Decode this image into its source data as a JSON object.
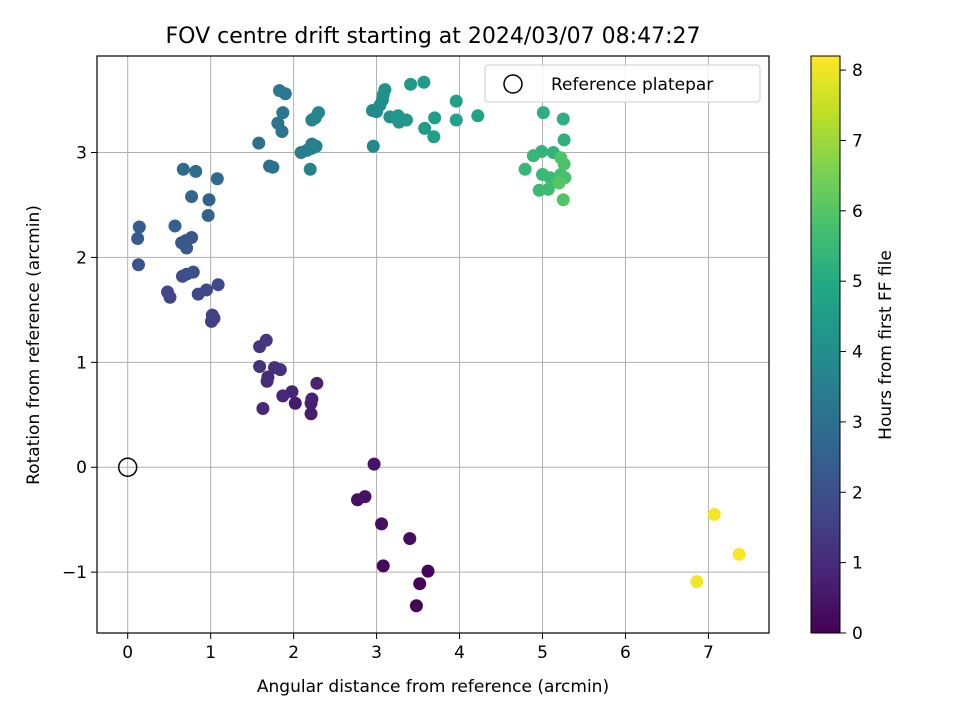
{
  "chart_data": {
    "type": "scatter",
    "title": "FOV centre drift starting at 2024/03/07 08:47:27",
    "xlabel": "Angular distance from reference (arcmin)",
    "ylabel": "Rotation from reference (arcmin)",
    "xlim": [
      -0.37,
      7.73
    ],
    "ylim": [
      -1.58,
      3.92
    ],
    "xticks": [
      "0",
      "1",
      "2",
      "3",
      "4",
      "5",
      "6",
      "7"
    ],
    "yticks": [
      "−1",
      "0",
      "1",
      "2",
      "3"
    ],
    "grid": true,
    "legend": {
      "position": "top-right",
      "entries": [
        "Reference platepar"
      ]
    },
    "reference": {
      "x": 0,
      "y": 0
    },
    "colorbar": {
      "label": "Hours from first FF file",
      "range": [
        0,
        8.2
      ],
      "ticks": [
        "0",
        "1",
        "2",
        "3",
        "4",
        "5",
        "6",
        "7",
        "8"
      ],
      "colormap": "viridis"
    },
    "points": [
      {
        "x": 3.48,
        "y": -1.32,
        "h": 0.05
      },
      {
        "x": 3.52,
        "y": -1.11,
        "h": 0.1
      },
      {
        "x": 3.62,
        "y": -0.99,
        "h": 0.15
      },
      {
        "x": 3.08,
        "y": -0.94,
        "h": 0.2
      },
      {
        "x": 3.4,
        "y": -0.68,
        "h": 0.25
      },
      {
        "x": 3.06,
        "y": -0.54,
        "h": 0.3
      },
      {
        "x": 2.77,
        "y": -0.31,
        "h": 0.35
      },
      {
        "x": 2.86,
        "y": -0.28,
        "h": 0.4
      },
      {
        "x": 2.97,
        "y": 0.03,
        "h": 0.45
      },
      {
        "x": 2.02,
        "y": 0.61,
        "h": 0.6
      },
      {
        "x": 2.21,
        "y": 0.51,
        "h": 0.65
      },
      {
        "x": 2.21,
        "y": 0.61,
        "h": 0.7
      },
      {
        "x": 2.22,
        "y": 0.65,
        "h": 0.75
      },
      {
        "x": 2.28,
        "y": 0.8,
        "h": 0.8
      },
      {
        "x": 1.98,
        "y": 0.72,
        "h": 0.85
      },
      {
        "x": 1.87,
        "y": 0.68,
        "h": 0.9
      },
      {
        "x": 1.63,
        "y": 0.56,
        "h": 0.95
      },
      {
        "x": 1.68,
        "y": 0.82,
        "h": 1.0
      },
      {
        "x": 1.69,
        "y": 0.86,
        "h": 1.05
      },
      {
        "x": 1.77,
        "y": 0.95,
        "h": 1.1
      },
      {
        "x": 1.84,
        "y": 0.93,
        "h": 1.15
      },
      {
        "x": 1.59,
        "y": 0.96,
        "h": 1.2
      },
      {
        "x": 1.59,
        "y": 1.15,
        "h": 1.25
      },
      {
        "x": 1.67,
        "y": 1.21,
        "h": 1.3
      },
      {
        "x": 1.01,
        "y": 1.39,
        "h": 1.5
      },
      {
        "x": 1.04,
        "y": 1.42,
        "h": 1.55
      },
      {
        "x": 1.02,
        "y": 1.45,
        "h": 1.6
      },
      {
        "x": 0.51,
        "y": 1.62,
        "h": 1.65
      },
      {
        "x": 0.48,
        "y": 1.67,
        "h": 1.7
      },
      {
        "x": 0.85,
        "y": 1.65,
        "h": 1.75
      },
      {
        "x": 0.95,
        "y": 1.69,
        "h": 1.8
      },
      {
        "x": 1.09,
        "y": 1.74,
        "h": 1.85
      },
      {
        "x": 0.66,
        "y": 1.82,
        "h": 1.9
      },
      {
        "x": 0.71,
        "y": 1.84,
        "h": 1.95
      },
      {
        "x": 0.79,
        "y": 1.86,
        "h": 2.0
      },
      {
        "x": 0.13,
        "y": 1.93,
        "h": 2.05
      },
      {
        "x": 0.65,
        "y": 2.14,
        "h": 2.15
      },
      {
        "x": 0.7,
        "y": 2.16,
        "h": 2.2
      },
      {
        "x": 0.77,
        "y": 2.19,
        "h": 2.25
      },
      {
        "x": 0.71,
        "y": 2.09,
        "h": 2.3
      },
      {
        "x": 0.12,
        "y": 2.18,
        "h": 2.35
      },
      {
        "x": 0.14,
        "y": 2.29,
        "h": 2.4
      },
      {
        "x": 0.57,
        "y": 2.3,
        "h": 2.45
      },
      {
        "x": 0.97,
        "y": 2.4,
        "h": 2.55
      },
      {
        "x": 0.98,
        "y": 2.55,
        "h": 2.6
      },
      {
        "x": 0.77,
        "y": 2.58,
        "h": 2.7
      },
      {
        "x": 1.08,
        "y": 2.75,
        "h": 2.75
      },
      {
        "x": 0.67,
        "y": 2.84,
        "h": 2.85
      },
      {
        "x": 0.82,
        "y": 2.82,
        "h": 2.9
      },
      {
        "x": 1.58,
        "y": 3.09,
        "h": 2.95
      },
      {
        "x": 1.71,
        "y": 2.87,
        "h": 3.0
      },
      {
        "x": 1.75,
        "y": 2.86,
        "h": 3.05
      },
      {
        "x": 1.81,
        "y": 3.28,
        "h": 3.1
      },
      {
        "x": 1.86,
        "y": 3.2,
        "h": 3.15
      },
      {
        "x": 1.87,
        "y": 3.38,
        "h": 3.2
      },
      {
        "x": 1.83,
        "y": 3.59,
        "h": 3.25
      },
      {
        "x": 1.9,
        "y": 3.56,
        "h": 3.3
      },
      {
        "x": 2.22,
        "y": 3.08,
        "h": 3.35
      },
      {
        "x": 2.09,
        "y": 3.0,
        "h": 3.4
      },
      {
        "x": 2.16,
        "y": 3.02,
        "h": 3.45
      },
      {
        "x": 2.22,
        "y": 3.04,
        "h": 3.5
      },
      {
        "x": 2.27,
        "y": 3.06,
        "h": 3.55
      },
      {
        "x": 2.2,
        "y": 2.84,
        "h": 3.6
      },
      {
        "x": 2.22,
        "y": 3.31,
        "h": 3.65
      },
      {
        "x": 2.26,
        "y": 3.33,
        "h": 3.7
      },
      {
        "x": 2.3,
        "y": 3.38,
        "h": 3.75
      },
      {
        "x": 2.96,
        "y": 3.06,
        "h": 3.8
      },
      {
        "x": 2.95,
        "y": 3.4,
        "h": 3.85
      },
      {
        "x": 3.0,
        "y": 3.39,
        "h": 3.9
      },
      {
        "x": 3.04,
        "y": 3.45,
        "h": 3.95
      },
      {
        "x": 3.07,
        "y": 3.5,
        "h": 4.0
      },
      {
        "x": 3.08,
        "y": 3.55,
        "h": 4.05
      },
      {
        "x": 3.1,
        "y": 3.6,
        "h": 4.1
      },
      {
        "x": 3.16,
        "y": 3.34,
        "h": 4.15
      },
      {
        "x": 3.23,
        "y": 3.33,
        "h": 4.2
      },
      {
        "x": 3.27,
        "y": 3.29,
        "h": 4.25
      },
      {
        "x": 3.26,
        "y": 3.35,
        "h": 4.3
      },
      {
        "x": 3.36,
        "y": 3.31,
        "h": 4.35
      },
      {
        "x": 3.41,
        "y": 3.65,
        "h": 4.4
      },
      {
        "x": 3.57,
        "y": 3.67,
        "h": 4.45
      },
      {
        "x": 3.58,
        "y": 3.23,
        "h": 4.5
      },
      {
        "x": 3.7,
        "y": 3.33,
        "h": 4.55
      },
      {
        "x": 3.69,
        "y": 3.15,
        "h": 4.6
      },
      {
        "x": 3.96,
        "y": 3.49,
        "h": 4.65
      },
      {
        "x": 3.96,
        "y": 3.31,
        "h": 4.7
      },
      {
        "x": 4.22,
        "y": 3.35,
        "h": 4.75
      },
      {
        "x": 5.01,
        "y": 3.38,
        "h": 5.15
      },
      {
        "x": 5.25,
        "y": 3.32,
        "h": 5.2
      },
      {
        "x": 5.26,
        "y": 3.12,
        "h": 5.25
      },
      {
        "x": 5.13,
        "y": 3.0,
        "h": 5.3
      },
      {
        "x": 4.99,
        "y": 3.01,
        "h": 5.35
      },
      {
        "x": 4.89,
        "y": 2.97,
        "h": 5.4
      },
      {
        "x": 4.79,
        "y": 2.84,
        "h": 5.45
      },
      {
        "x": 5.0,
        "y": 2.79,
        "h": 5.5
      },
      {
        "x": 5.09,
        "y": 2.76,
        "h": 5.55
      },
      {
        "x": 4.96,
        "y": 2.64,
        "h": 5.6
      },
      {
        "x": 5.07,
        "y": 2.65,
        "h": 5.65
      },
      {
        "x": 5.18,
        "y": 2.72,
        "h": 5.7
      },
      {
        "x": 5.22,
        "y": 2.79,
        "h": 5.75
      },
      {
        "x": 5.27,
        "y": 2.76,
        "h": 5.8
      },
      {
        "x": 5.26,
        "y": 2.89,
        "h": 5.85
      },
      {
        "x": 5.22,
        "y": 2.95,
        "h": 5.9
      },
      {
        "x": 5.25,
        "y": 2.55,
        "h": 5.95
      },
      {
        "x": 5.2,
        "y": 2.71,
        "h": 6.0
      },
      {
        "x": 6.86,
        "y": -1.09,
        "h": 8.05
      },
      {
        "x": 7.07,
        "y": -0.45,
        "h": 8.1
      },
      {
        "x": 7.37,
        "y": -0.83,
        "h": 8.15
      }
    ]
  }
}
